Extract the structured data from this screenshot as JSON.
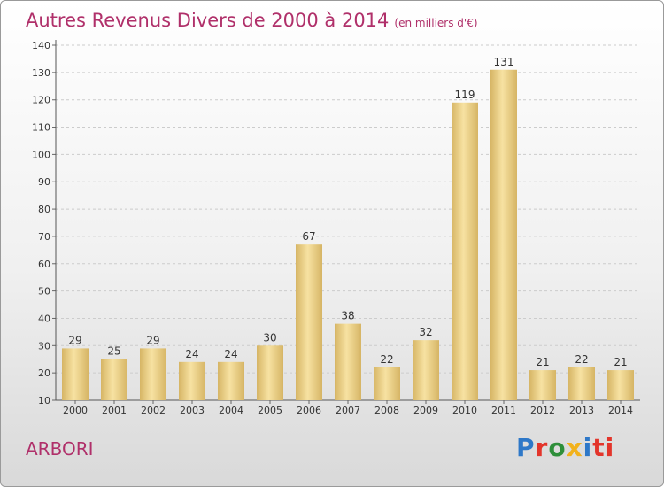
{
  "title": "Autres Revenus Divers de 2000 à 2014",
  "subtitle": "(en milliers d'€)",
  "commune": "ARBORI",
  "logo_letters": [
    "P",
    "r",
    "o",
    "x",
    "i",
    "ti"
  ],
  "colors": {
    "title": "#b0306a",
    "bar_light": "#f7e2a2",
    "bar_dark": "#d6b565",
    "grid": "#cccccc"
  },
  "chart_data": {
    "type": "bar",
    "categories": [
      "2000",
      "2001",
      "2002",
      "2003",
      "2004",
      "2005",
      "2006",
      "2007",
      "2008",
      "2009",
      "2010",
      "2011",
      "2012",
      "2013",
      "2014"
    ],
    "values": [
      29,
      25,
      29,
      24,
      24,
      30,
      67,
      38,
      22,
      32,
      119,
      131,
      21,
      22,
      21
    ],
    "ylim": [
      10,
      140
    ],
    "yticks": [
      10,
      20,
      30,
      40,
      50,
      60,
      70,
      80,
      90,
      100,
      110,
      120,
      130,
      140
    ],
    "grid": true,
    "data_labels": true
  }
}
